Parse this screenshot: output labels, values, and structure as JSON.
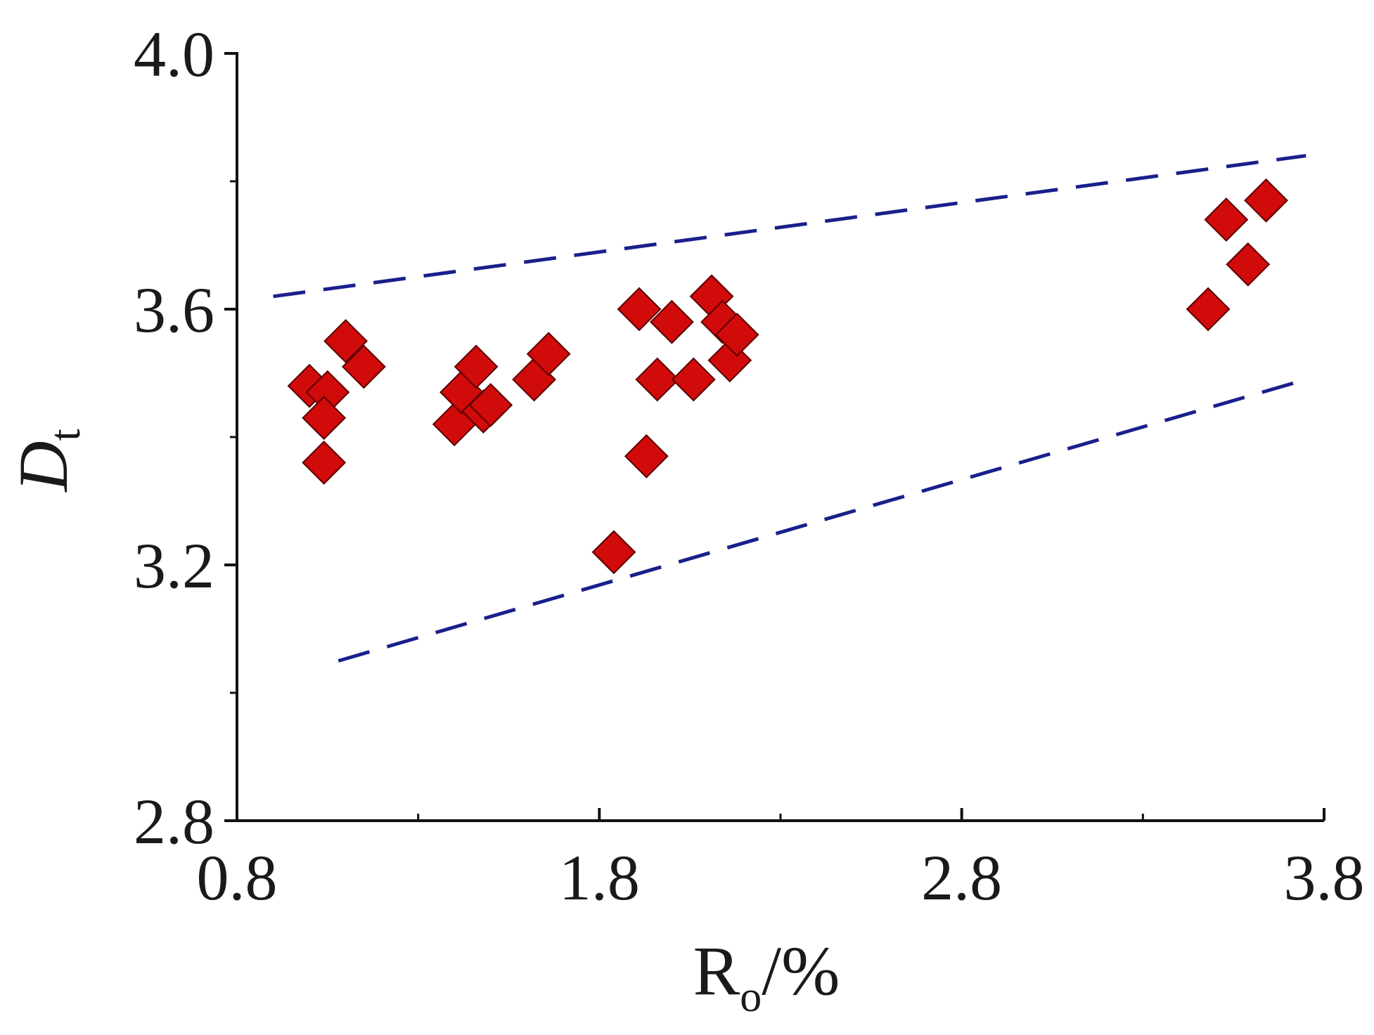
{
  "chart_data": {
    "type": "scatter",
    "xlabel": {
      "main": "R",
      "sub": "o",
      "suffix": "/%"
    },
    "ylabel": {
      "main": "D",
      "sub": "t"
    },
    "xlim": [
      0.8,
      3.8
    ],
    "ylim": [
      2.8,
      4.0
    ],
    "x_ticks": [
      0.8,
      1.8,
      2.8,
      3.8
    ],
    "y_ticks": [
      2.8,
      3.2,
      3.6,
      4.0
    ],
    "x_tick_labels": [
      "0.8",
      "1.8",
      "2.8",
      "3.8"
    ],
    "y_tick_labels": [
      "2.8",
      "3.2",
      "3.6",
      "4.0"
    ],
    "x_minor_ticks": [
      1.3,
      2.3,
      3.3
    ],
    "y_minor_ticks": [
      3.0,
      3.4,
      3.8
    ],
    "grid": false,
    "legend": "none",
    "marker": {
      "shape": "diamond",
      "color": "#d10a0a",
      "edge_color": "#5a0000"
    },
    "points": [
      {
        "x": 1.0,
        "y": 3.48
      },
      {
        "x": 1.05,
        "y": 3.47
      },
      {
        "x": 1.04,
        "y": 3.43
      },
      {
        "x": 1.04,
        "y": 3.36
      },
      {
        "x": 1.1,
        "y": 3.55
      },
      {
        "x": 1.15,
        "y": 3.51
      },
      {
        "x": 1.4,
        "y": 3.42
      },
      {
        "x": 1.42,
        "y": 3.47
      },
      {
        "x": 1.46,
        "y": 3.51
      },
      {
        "x": 1.48,
        "y": 3.44
      },
      {
        "x": 1.5,
        "y": 3.45
      },
      {
        "x": 1.62,
        "y": 3.49
      },
      {
        "x": 1.66,
        "y": 3.53
      },
      {
        "x": 1.84,
        "y": 3.22
      },
      {
        "x": 1.91,
        "y": 3.6
      },
      {
        "x": 1.93,
        "y": 3.37
      },
      {
        "x": 1.96,
        "y": 3.49
      },
      {
        "x": 2.0,
        "y": 3.58
      },
      {
        "x": 2.06,
        "y": 3.49
      },
      {
        "x": 2.11,
        "y": 3.62
      },
      {
        "x": 2.14,
        "y": 3.58
      },
      {
        "x": 2.16,
        "y": 3.52
      },
      {
        "x": 2.18,
        "y": 3.56
      },
      {
        "x": 3.48,
        "y": 3.6
      },
      {
        "x": 3.53,
        "y": 3.74
      },
      {
        "x": 3.59,
        "y": 3.67
      },
      {
        "x": 3.64,
        "y": 3.77
      }
    ],
    "boundary_lines": [
      {
        "style": "dashed",
        "color": "#1a1f8c",
        "x": [
          0.9,
          3.75
        ],
        "y": [
          3.62,
          3.84
        ]
      },
      {
        "style": "dashed",
        "color": "#1a1f8c",
        "x": [
          1.08,
          3.75
        ],
        "y": [
          3.05,
          3.49
        ]
      }
    ]
  }
}
